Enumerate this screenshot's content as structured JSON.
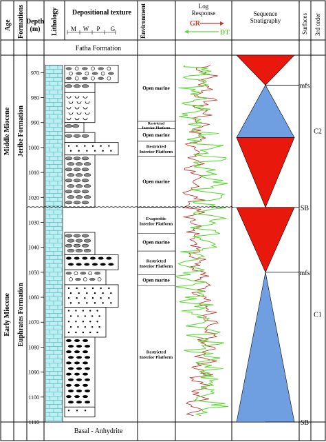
{
  "headers": {
    "age": "Age",
    "formations": "Formations",
    "depth": "Depth",
    "depth_unit": "(m)",
    "lithology": "Lithology",
    "depositional_texture": "Depositional texture",
    "texture_classes": [
      "M",
      "W",
      "P",
      "G"
    ],
    "environment": "Environment",
    "log_response_line1": "Log",
    "log_response_line2": "Response",
    "gr_label": "GR",
    "dt_label": "DT",
    "sequence_stratigraphy_line1": "Sequence",
    "sequence_stratigraphy_line2": "Stratigraphy",
    "surfaces": "Surfaces",
    "order_label": "3rd order"
  },
  "colors": {
    "gr": "#c0392b",
    "dt": "#5fd93a",
    "lithology_fill": "#bdeef0",
    "tst": "#e8180c",
    "hst": "#6f9fe0"
  },
  "top_formation": "Fatha Formation",
  "bottom_formation": "Basal - Anhydrite",
  "ages": [
    {
      "label": "Middle Miocene",
      "formation": "Jeribe Formation",
      "top": 963,
      "bottom": 1024
    },
    {
      "label": "Early Miocene",
      "formation": "Euphrates Formation",
      "top": 1024,
      "bottom": 1110
    }
  ],
  "depth_axis": {
    "min": 963,
    "max": 1110,
    "ticks": [
      970,
      980,
      990,
      1000,
      1010,
      1020,
      1030,
      1040,
      1050,
      1060,
      1070,
      1080,
      1090,
      1100,
      1110
    ]
  },
  "environments": [
    {
      "top": 963,
      "bottom": 989.5,
      "label": "Open marine"
    },
    {
      "top": 989.5,
      "bottom": 992.5,
      "label": "Restricted Interior Platform"
    },
    {
      "top": 992.5,
      "bottom": 997.5,
      "label": "Open marine"
    },
    {
      "top": 997.5,
      "bottom": 1003.5,
      "label": "Restricted Interior Platform"
    },
    {
      "top": 1003.5,
      "bottom": 1024,
      "label": "Open marine"
    },
    {
      "top": 1024,
      "bottom": 1034.5,
      "label": "Evaporitic Interior Platform"
    },
    {
      "top": 1034.5,
      "bottom": 1041.5,
      "label": "Open marine"
    },
    {
      "top": 1041.5,
      "bottom": 1051,
      "label": "Restricted Interior Platform"
    },
    {
      "top": 1051,
      "bottom": 1055.5,
      "label": "Open marine"
    },
    {
      "top": 1055.5,
      "bottom": 1110,
      "label": "Restricted Interior Platform"
    }
  ],
  "texture_beds": [
    {
      "top": 967,
      "bottom": 974,
      "class": 4,
      "motif": "mixed"
    },
    {
      "top": 974,
      "bottom": 978,
      "class": 2,
      "motif": "ovals"
    },
    {
      "top": 978,
      "bottom": 990,
      "class": 2,
      "motif": "shells"
    },
    {
      "top": 990,
      "bottom": 994,
      "class": 1,
      "motif": "ovals"
    },
    {
      "top": 994,
      "bottom": 998,
      "class": 2,
      "motif": "ovals"
    },
    {
      "top": 998,
      "bottom": 1003,
      "class": 4,
      "motif": "dots"
    },
    {
      "top": 1003,
      "bottom": 1024,
      "class": 2,
      "motif": "ovals"
    },
    {
      "top": 1034,
      "bottom": 1043,
      "class": 2,
      "motif": "ovals"
    },
    {
      "top": 1043,
      "bottom": 1049,
      "class": 4,
      "motif": "pellets"
    },
    {
      "top": 1049,
      "bottom": 1055,
      "class": 3,
      "motif": "mixed"
    },
    {
      "top": 1055,
      "bottom": 1064,
      "class": 4,
      "motif": "dots"
    },
    {
      "top": 1064,
      "bottom": 1076,
      "class": 3,
      "motif": "dots"
    },
    {
      "top": 1076,
      "bottom": 1104,
      "class": 2,
      "motif": "pellets"
    },
    {
      "top": 1104,
      "bottom": 1108,
      "class": 2,
      "motif": "dots"
    }
  ],
  "sequences": [
    {
      "name": "C2",
      "triangles": [
        {
          "kind": "tst",
          "top": 963,
          "bottom": 975
        },
        {
          "kind": "hst",
          "top": 975,
          "bottom": 996
        },
        {
          "kind": "tst",
          "top": 996,
          "bottom": 1024
        }
      ]
    },
    {
      "name": "C1",
      "triangles": [
        {
          "kind": "tst",
          "top": 1024,
          "bottom": 1050
        },
        {
          "kind": "hst",
          "top": 1050,
          "bottom": 1110
        }
      ]
    }
  ],
  "surfaces": [
    {
      "label": "mfs",
      "depth": 975
    },
    {
      "label": "SB",
      "depth": 1024
    },
    {
      "label": "mfs",
      "depth": 1050
    },
    {
      "label": "SB",
      "depth": 1110
    }
  ]
}
